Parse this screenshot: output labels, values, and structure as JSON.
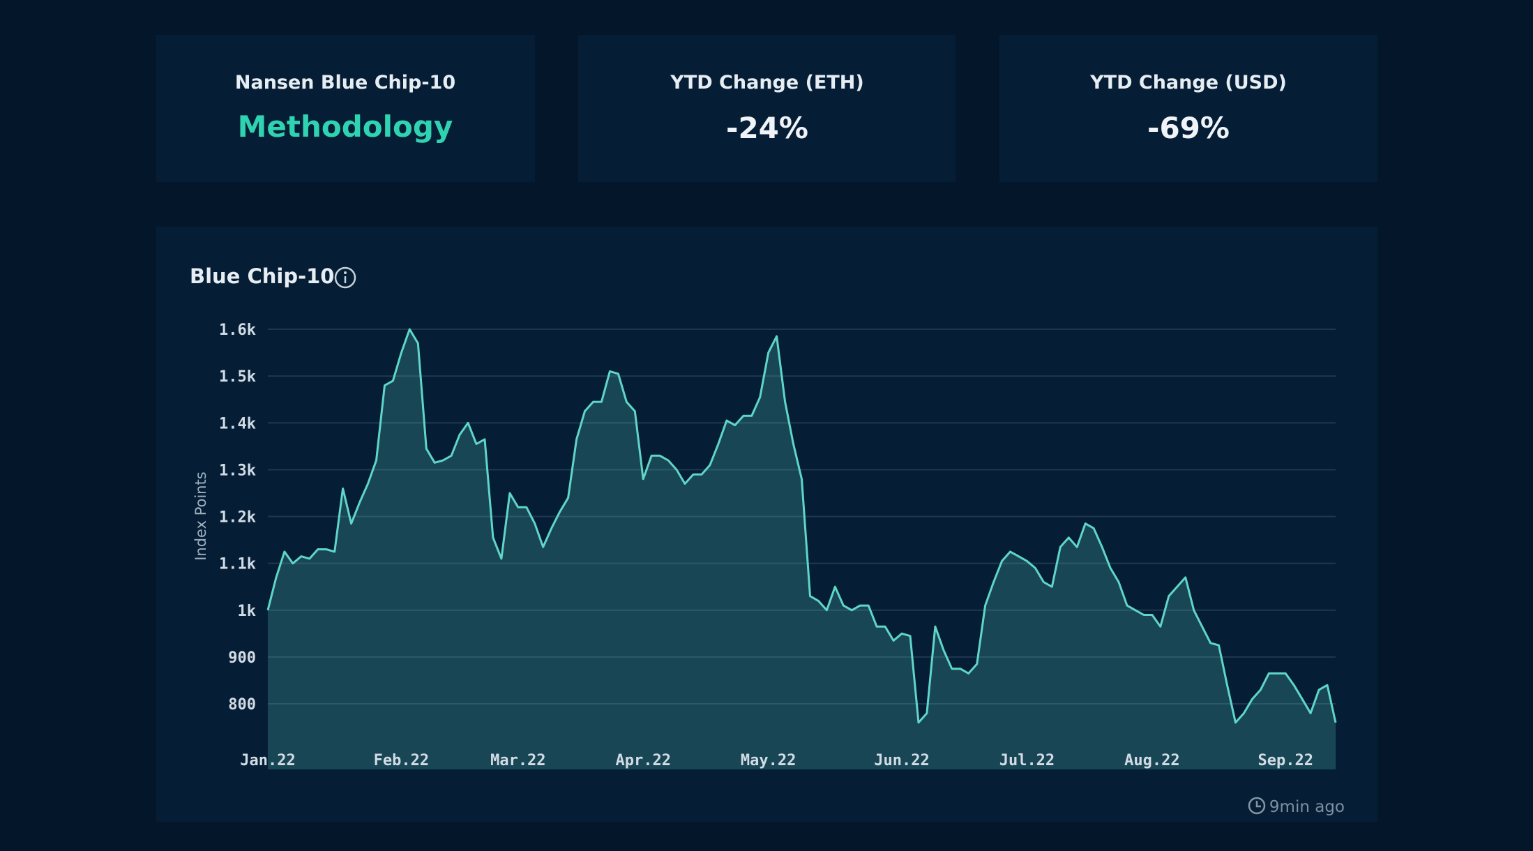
{
  "cards": [
    {
      "label": "Nansen Blue Chip-10",
      "value": "Methodology"
    },
    {
      "label": "YTD Change (ETH)",
      "value": "-24%"
    },
    {
      "label": "YTD Change (USD)",
      "value": "-69%"
    }
  ],
  "chart_data": {
    "type": "area",
    "title": "Blue Chip-10",
    "y_label": "Index Points",
    "color": "#5fd6c7",
    "categories": [
      "Jan.22",
      null,
      null,
      null,
      null,
      null,
      null,
      null,
      null,
      null,
      null,
      null,
      null,
      null,
      null,
      null,
      "Feb.22",
      null,
      null,
      null,
      null,
      null,
      null,
      null,
      null,
      null,
      null,
      null,
      null,
      null,
      "Mar.22",
      null,
      null,
      null,
      null,
      null,
      null,
      null,
      null,
      null,
      null,
      null,
      null,
      null,
      null,
      "Apr.22",
      null,
      null,
      null,
      null,
      null,
      null,
      null,
      null,
      null,
      null,
      null,
      null,
      null,
      null,
      "May.22",
      null,
      null,
      null,
      null,
      null,
      null,
      null,
      null,
      null,
      null,
      null,
      null,
      null,
      null,
      null,
      "Jun.22",
      null,
      null,
      null,
      null,
      null,
      null,
      null,
      null,
      null,
      null,
      null,
      null,
      null,
      null,
      "Jul.22",
      null,
      null,
      null,
      null,
      null,
      null,
      null,
      null,
      null,
      null,
      null,
      null,
      null,
      null,
      "Aug.22",
      null,
      null,
      null,
      null,
      null,
      null,
      null,
      null,
      null,
      null,
      null,
      null,
      null,
      null,
      null,
      "Sep.22",
      null,
      null,
      null,
      null,
      null,
      null
    ],
    "values": [
      1000,
      1070,
      1125,
      1100,
      1115,
      1110,
      1130,
      1130,
      1125,
      1260,
      1185,
      1230,
      1270,
      1320,
      1480,
      1490,
      1550,
      1600,
      1570,
      1345,
      1315,
      1320,
      1330,
      1375,
      1400,
      1355,
      1365,
      1155,
      1110,
      1250,
      1220,
      1220,
      1185,
      1135,
      1175,
      1210,
      1240,
      1365,
      1425,
      1445,
      1445,
      1510,
      1505,
      1445,
      1425,
      1280,
      1330,
      1330,
      1320,
      1300,
      1270,
      1290,
      1290,
      1310,
      1355,
      1405,
      1395,
      1415,
      1415,
      1455,
      1550,
      1585,
      1445,
      1355,
      1280,
      1030,
      1020,
      1000,
      1050,
      1010,
      1000,
      1010,
      1010,
      965,
      965,
      935,
      950,
      945,
      760,
      780,
      965,
      915,
      875,
      875,
      865,
      885,
      1010,
      1060,
      1105,
      1125,
      1115,
      1105,
      1090,
      1060,
      1050,
      1135,
      1155,
      1135,
      1185,
      1175,
      1135,
      1090,
      1060,
      1010,
      1000,
      990,
      990,
      965,
      1030,
      1050,
      1070,
      1000,
      965,
      930,
      925,
      840,
      760,
      780,
      810,
      830,
      865,
      865,
      865,
      840,
      810,
      780,
      830,
      840,
      760
    ],
    "ylim": [
      660,
      1620
    ],
    "yticks": [
      800,
      900,
      {
        "value": 1000,
        "label": "1k"
      },
      {
        "value": 1100,
        "label": "1.1k"
      },
      {
        "value": 1200,
        "label": "1.2k"
      },
      {
        "value": 1300,
        "label": "1.3k"
      },
      {
        "value": 1400,
        "label": "1.4k"
      },
      {
        "value": 1500,
        "label": "1.5k"
      },
      {
        "value": 1600,
        "label": "1.6k"
      }
    ],
    "grid": true
  },
  "footer": {
    "updated": "9min ago"
  }
}
